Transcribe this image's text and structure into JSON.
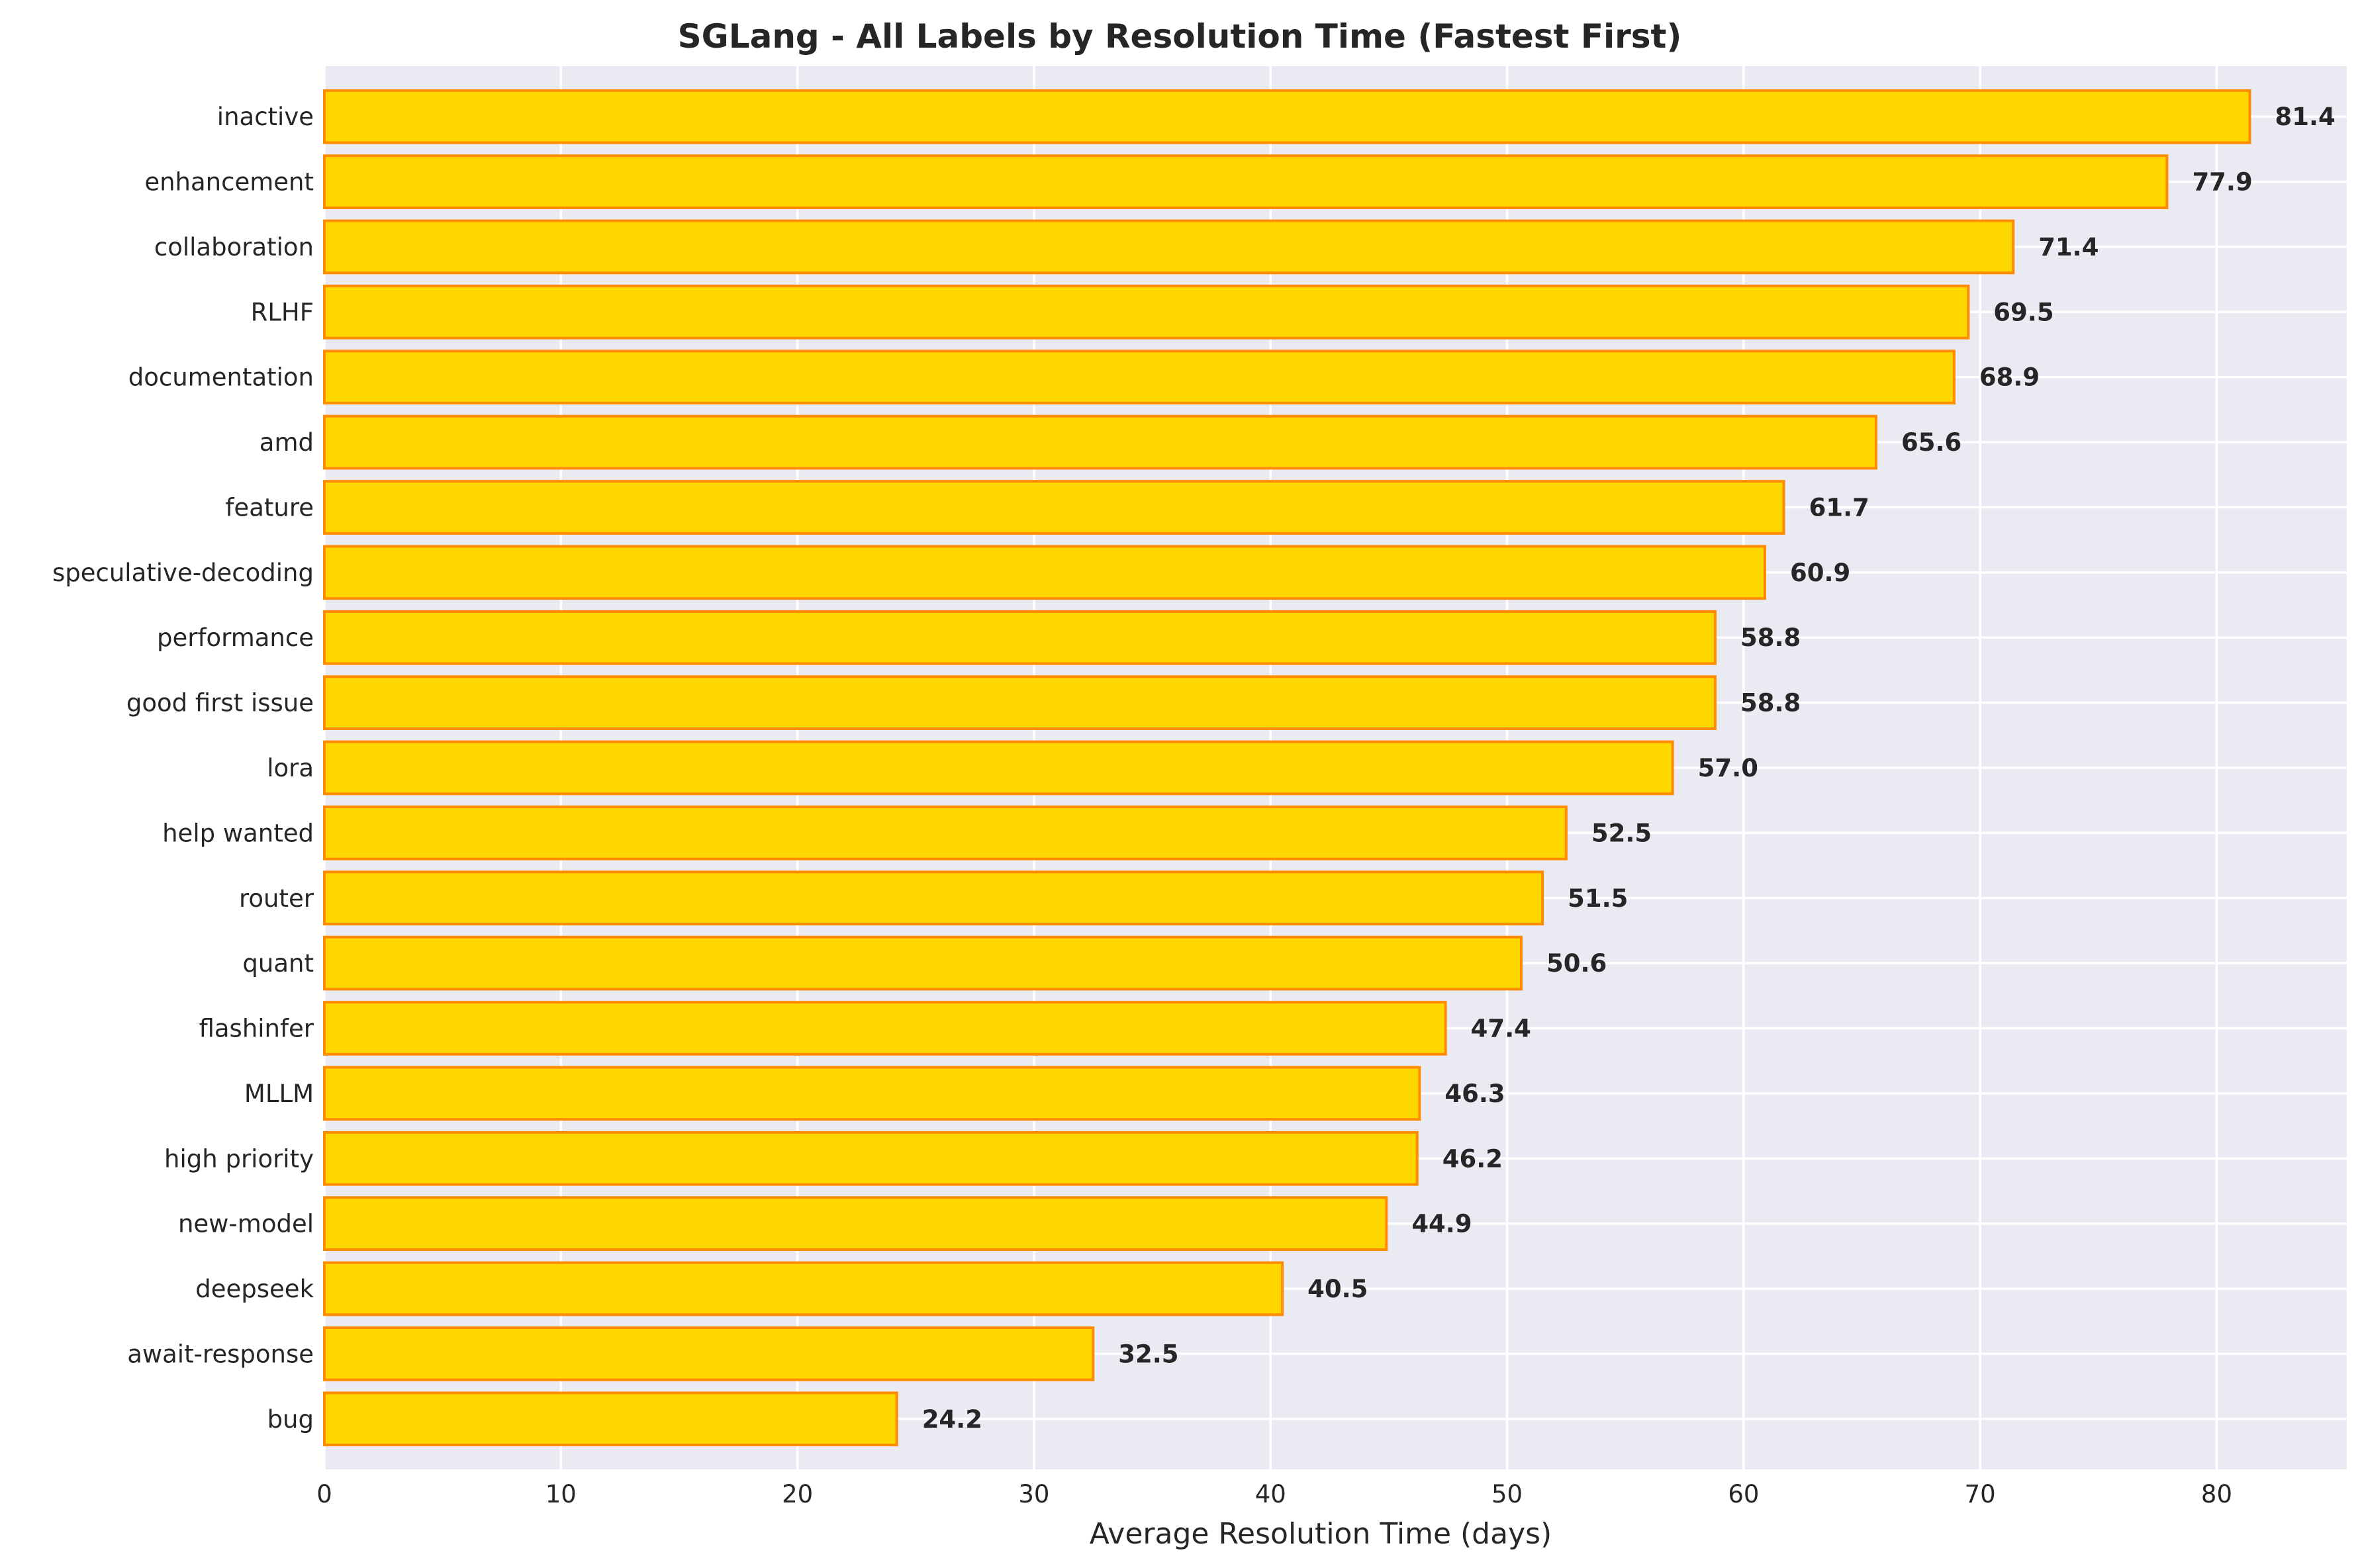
{
  "chart_data": {
    "type": "bar",
    "orientation": "horizontal",
    "title": "SGLang - All Labels by Resolution Time (Fastest First)",
    "xlabel": "Average Resolution Time (days)",
    "ylabel": "",
    "xlim": [
      0,
      85.5
    ],
    "xticks": [
      0,
      10,
      20,
      30,
      40,
      50,
      60,
      70,
      80
    ],
    "grid": true,
    "bar_color": "#FFD700",
    "bar_edge_color": "#FF8C00",
    "plot_background": "#EAEAF2",
    "categories": [
      "inactive",
      "enhancement",
      "collaboration",
      "RLHF",
      "documentation",
      "amd",
      "feature",
      "speculative-decoding",
      "performance",
      "good first issue",
      "lora",
      "help wanted",
      "router",
      "quant",
      "flashinfer",
      "MLLM",
      "high priority",
      "new-model",
      "deepseek",
      "await-response",
      "bug"
    ],
    "values": [
      81.4,
      77.9,
      71.4,
      69.5,
      68.9,
      65.6,
      61.7,
      60.9,
      58.8,
      58.8,
      57.0,
      52.5,
      51.5,
      50.6,
      47.4,
      46.3,
      46.2,
      44.9,
      40.5,
      32.5,
      24.2
    ],
    "value_labels": [
      "81.4",
      "77.9",
      "71.4",
      "69.5",
      "68.9",
      "65.6",
      "61.7",
      "60.9",
      "58.8",
      "58.8",
      "57.0",
      "52.5",
      "51.5",
      "50.6",
      "47.4",
      "46.3",
      "46.2",
      "44.9",
      "40.5",
      "32.5",
      "24.2"
    ]
  }
}
